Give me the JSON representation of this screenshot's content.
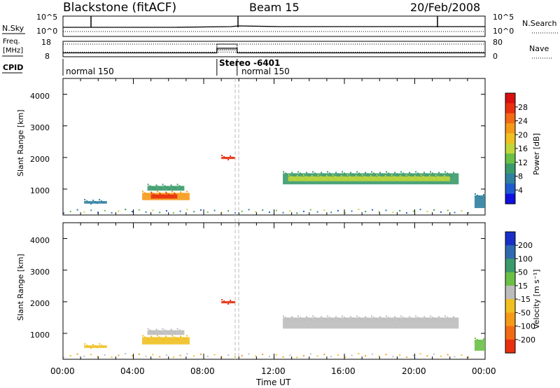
{
  "header": {
    "station": "Blackstone (fitACF)",
    "beam": "Beam 15",
    "date": "20/Feb/2008"
  },
  "summary": {
    "nsky_label": "N.Sky",
    "nsky_ticks": [
      "10^5",
      "10^0"
    ],
    "nsearch_label": "N.Search",
    "nsearch_ticks": [
      "10^5",
      "10^0"
    ],
    "freq_label_1": "Freq.",
    "freq_label_2": "[MHz]",
    "freq_ticks": [
      "18",
      "8"
    ],
    "nave_label": "Nave",
    "nave_ticks": [
      "80",
      "0"
    ],
    "cpid_label": "CPID",
    "cpid_segments": [
      {
        "label": "normal 150",
        "start_hour": 0.0
      },
      {
        "label": "Stereo -6401",
        "start_hour": 8.75
      },
      {
        "label": "normal 150",
        "start_hour": 9.9
      }
    ]
  },
  "power_panel": {
    "ylabel": "Slant Range [km]",
    "yticks": [
      "4000",
      "3000",
      "2000",
      "1000"
    ],
    "colorbar_title": "Power [dB]",
    "colorbar_ticks": [
      "28",
      "24",
      "20",
      "16",
      "12",
      "8",
      "4"
    ],
    "colorbar_colors": [
      "#1010e0",
      "#1f5bd0",
      "#2f7fa0",
      "#3a9a6a",
      "#6ac046",
      "#c2d63a",
      "#f0c020",
      "#f59a18",
      "#f36a14",
      "#e83010",
      "#d81010"
    ]
  },
  "velocity_panel": {
    "ylabel": "Slant Range [km]",
    "yticks": [
      "4000",
      "3000",
      "2000",
      "1000"
    ],
    "colorbar_title": "Velocity [m s⁻¹]",
    "colorbar_ticks": [
      "200",
      "100",
      "50",
      "15",
      "-15",
      "-50",
      "-100",
      "-200"
    ],
    "colorbar_colors": [
      "#1830c8",
      "#2f6ab0",
      "#3a9a6a",
      "#6ac046",
      "#bcbcbc",
      "#f0c020",
      "#f59a18",
      "#f36a14",
      "#e83010"
    ]
  },
  "xaxis": {
    "label": "Time UT",
    "ticks": [
      "00:00",
      "04:00",
      "08:00",
      "12:00",
      "16:00",
      "20:00",
      "00:00"
    ]
  },
  "chart_data": {
    "type": "heatmap",
    "title": "Blackstone (fitACF)",
    "xlabel": "Time UT",
    "ylabel": "Slant Range [km]",
    "xlim": [
      0,
      24
    ],
    "ylim": [
      180,
      4500
    ],
    "series": [
      {
        "name": "Power [dB]",
        "patches": [
          {
            "t": [
              4.8,
              6.9
            ],
            "r": [
              950,
              1100
            ],
            "level": 10
          },
          {
            "t": [
              4.5,
              7.2
            ],
            "r": [
              650,
              880
            ],
            "level": 20
          },
          {
            "t": [
              5.0,
              6.5
            ],
            "r": [
              700,
              830
            ],
            "level": 26
          },
          {
            "t": [
              9.0,
              9.8
            ],
            "r": [
              1950,
              2020
            ],
            "level": 28
          },
          {
            "t": [
              12.5,
              22.5
            ],
            "r": [
              1150,
              1500
            ],
            "level": 8
          },
          {
            "t": [
              12.8,
              22.0
            ],
            "r": [
              1250,
              1400
            ],
            "level": 16
          },
          {
            "t": [
              1.2,
              2.5
            ],
            "r": [
              540,
              620
            ],
            "level": 6
          },
          {
            "t": [
              23.4,
              24.0
            ],
            "r": [
              400,
              800
            ],
            "level": 5
          }
        ]
      },
      {
        "name": "Velocity [m s-1]",
        "patches": [
          {
            "t": [
              4.8,
              6.9
            ],
            "r": [
              950,
              1100
            ],
            "level": 0
          },
          {
            "t": [
              4.5,
              7.2
            ],
            "r": [
              650,
              880
            ],
            "level": -30
          },
          {
            "t": [
              9.0,
              9.8
            ],
            "r": [
              1950,
              2020
            ],
            "level": -250
          },
          {
            "t": [
              12.5,
              22.5
            ],
            "r": [
              1150,
              1500
            ],
            "level": 0
          },
          {
            "t": [
              1.2,
              2.5
            ],
            "r": [
              540,
              620
            ],
            "level": -40
          },
          {
            "t": [
              23.4,
              24.0
            ],
            "r": [
              450,
              800
            ],
            "level": 30
          }
        ]
      }
    ],
    "frequency_mhz": {
      "t": [
        0,
        8.75,
        8.75,
        9.9,
        9.9,
        24
      ],
      "v": [
        10.5,
        10.5,
        13.5,
        13.5,
        10.5,
        10.5
      ]
    },
    "nave": {
      "t": [
        0,
        24
      ],
      "v": [
        24,
        24
      ]
    }
  }
}
